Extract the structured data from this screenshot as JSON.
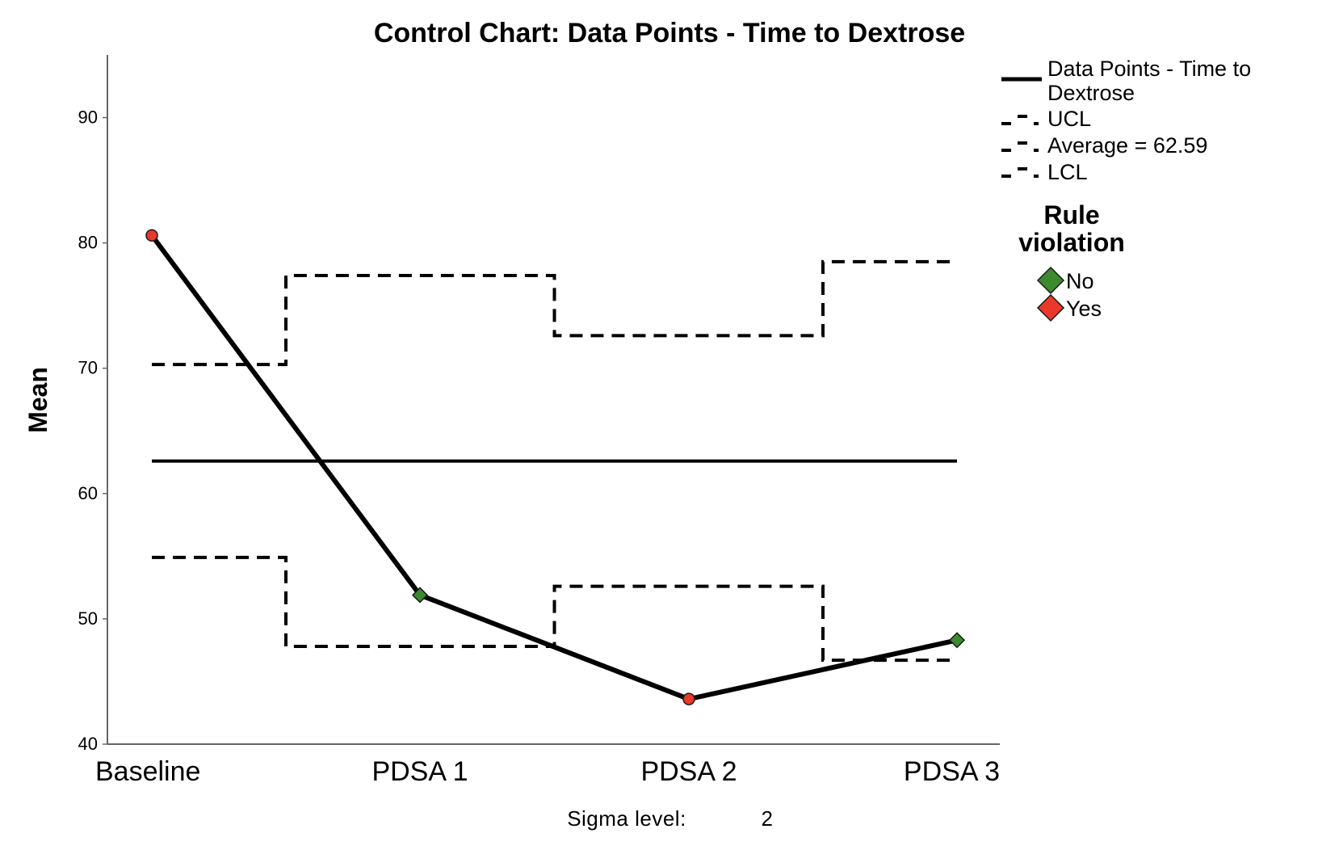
{
  "chart_data": {
    "type": "line",
    "title": "Control Chart: Data Points - Time to Dextrose",
    "ylabel": "Mean",
    "xlabel": "",
    "categories": [
      "Baseline",
      "PDSA 1",
      "PDSA 2",
      "PDSA 3"
    ],
    "ylim": [
      40,
      95
    ],
    "yticks": [
      40,
      50,
      60,
      70,
      80,
      90
    ],
    "grid": false,
    "legend_position": "top-right",
    "average": 62.59,
    "series": [
      {
        "name": "Data Points - Time to Dextrose",
        "values": [
          80.6,
          51.9,
          43.6,
          48.3
        ],
        "rule_violation": [
          "Yes",
          "No",
          "Yes",
          "No"
        ]
      },
      {
        "name": "UCL",
        "values": [
          70.3,
          77.4,
          72.6,
          78.5
        ]
      },
      {
        "name": "Average = 62.59",
        "values": [
          62.59,
          62.59,
          62.59,
          62.59
        ]
      },
      {
        "name": "LCL",
        "values": [
          54.9,
          47.8,
          52.6,
          46.7
        ]
      }
    ],
    "legend": {
      "line_entries": [
        "Data Points - Time to",
        "Dextrose",
        "UCL",
        "Average = 62.59",
        "LCL"
      ],
      "rule_title_lines": [
        "Rule",
        "violation"
      ],
      "rule_entries": [
        {
          "label": "No",
          "color": "#3b8a2e"
        },
        {
          "label": "Yes",
          "color": "#e8392a"
        }
      ]
    },
    "footer": {
      "label": "Sigma level:",
      "value": "2"
    },
    "colors": {
      "line": "#000000",
      "axis": "#666666",
      "no_violation": "#3b8a2e",
      "violation": "#e8392a"
    }
  }
}
